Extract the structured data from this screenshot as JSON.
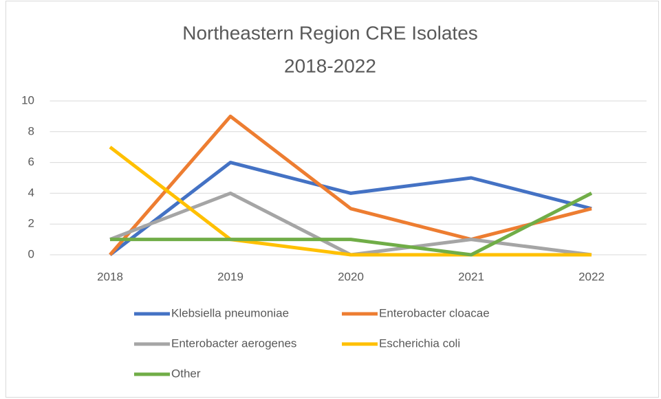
{
  "chart_data": {
    "type": "line",
    "title": [
      "Northeastern Region CRE Isolates",
      "2018-2022"
    ],
    "categories": [
      "2018",
      "2019",
      "2020",
      "2021",
      "2022"
    ],
    "series": [
      {
        "name": "Klebsiella pneumoniae",
        "color": "#4472c4",
        "values": [
          0,
          6,
          4,
          5,
          3
        ]
      },
      {
        "name": "Enterobacter cloacae",
        "color": "#ed7d31",
        "values": [
          0,
          9,
          3,
          1,
          3
        ]
      },
      {
        "name": "Enterobacter aerogenes",
        "color": "#a5a5a5",
        "values": [
          1,
          4,
          0,
          1,
          0
        ]
      },
      {
        "name": "Escherichia coli",
        "color": "#ffc000",
        "values": [
          7,
          1,
          0,
          0,
          0
        ]
      },
      {
        "name": "Other",
        "color": "#70ad47",
        "values": [
          1,
          1,
          1,
          0,
          4
        ]
      }
    ],
    "ylim": [
      0,
      10
    ],
    "yticks": [
      0,
      2,
      4,
      6,
      8,
      10
    ],
    "grid": true,
    "legend": "bottom"
  }
}
